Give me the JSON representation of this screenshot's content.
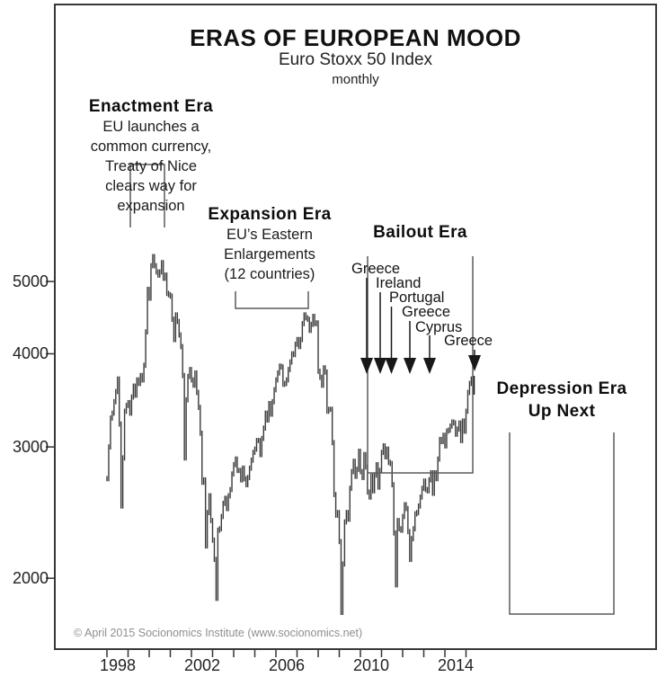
{
  "header": {
    "title": "ERAS OF EUROPEAN MOOD",
    "subtitle": "Euro Stoxx 50 Index",
    "frequency": "monthly"
  },
  "eras": {
    "enactment": {
      "title": "Enactment Era",
      "desc_lines": [
        "EU launches a",
        "common currency,",
        "Treaty of Nice",
        "clears way for",
        "expansion"
      ]
    },
    "expansion": {
      "title": "Expansion Era",
      "desc_lines": [
        "EU’s Eastern",
        "Enlargements",
        "(12 countries)"
      ]
    },
    "bailout": {
      "title": "Bailout Era",
      "events": [
        "Greece",
        "Ireland",
        "Portugal",
        "Greece",
        "Cyprus",
        "Greece"
      ]
    },
    "depression": {
      "title": "Depression Era",
      "subtitle": "Up Next"
    }
  },
  "axes": {
    "y_tick_labels": [
      "5000",
      "4000",
      "3000",
      "2000"
    ],
    "x_labels": [
      "1998",
      "2002",
      "2006",
      "2010",
      "2014"
    ]
  },
  "footer": {
    "copyright": "© April 2015 Socionomics Institute (www.socionomics.net)"
  },
  "colors": {
    "price_bar": "#3a3a3a",
    "frame": "#383838",
    "tick": "#333333",
    "bracket": "#5a5a5a",
    "arrow": "#181818",
    "text": "#1b1b1b",
    "muted": "#8f8f8f"
  },
  "chart_data": {
    "type": "line",
    "style": "monthly high-low price bars",
    "title": "ERAS OF EUROPEAN MOOD",
    "subtitle": "Euro Stoxx 50 Index",
    "frequency": "monthly",
    "y_scale": "log",
    "ylim": [
      1700,
      5600
    ],
    "y_ticks": [
      5000,
      4000,
      3000,
      2000
    ],
    "x_start": "1998-01",
    "x_end": "2015-04",
    "x_tick_years": [
      1998,
      1999,
      2000,
      2001,
      2002,
      2003,
      2004,
      2005,
      2006,
      2007,
      2008,
      2009,
      2010,
      2011,
      2012,
      2013,
      2014,
      2015
    ],
    "x_label_years": [
      1998,
      2002,
      2006,
      2010,
      2014
    ],
    "monthly_close": [
      2720,
      3000,
      3280,
      3330,
      3450,
      3560,
      3700,
      3220,
      2500,
      2900,
      3350,
      3410,
      3440,
      3330,
      3500,
      3620,
      3520,
      3690,
      3650,
      3740,
      3690,
      3860,
      4280,
      4880,
      4750,
      5250,
      5400,
      5250,
      5150,
      5100,
      5150,
      5300,
      5050,
      5100,
      4820,
      4800,
      4780,
      4450,
      4180,
      4510,
      4420,
      4240,
      4090,
      3740,
      2900,
      3470,
      3730,
      3810,
      3690,
      3630,
      3770,
      3550,
      3390,
      3130,
      2690,
      2710,
      2210,
      2450,
      2580,
      2390,
      2250,
      2120,
      1880,
      2320,
      2330,
      2420,
      2520,
      2560,
      2480,
      2580,
      2630,
      2760,
      2840,
      2890,
      2790,
      2790,
      2710,
      2810,
      2720,
      2670,
      2730,
      2810,
      2880,
      2950,
      2980,
      3060,
      3060,
      2930,
      3080,
      3180,
      3330,
      3260,
      3430,
      3320,
      3450,
      3580,
      3690,
      3770,
      3850,
      3840,
      3640,
      3650,
      3690,
      3810,
      3900,
      4000,
      3990,
      4120,
      4180,
      4090,
      4180,
      4390,
      4510,
      4470,
      4450,
      4300,
      4380,
      4490,
      4390,
      4400,
      3790,
      3720,
      3630,
      3830,
      3780,
      3350,
      3370,
      3370,
      3040,
      2590,
      2430,
      2450,
      2240,
      1800,
      2090,
      2380,
      2450,
      2400,
      2640,
      2780,
      2870,
      2740,
      2800,
      2960,
      2780,
      2730,
      2930,
      2820,
      2610,
      2570,
      2740,
      2620,
      2750,
      2840,
      2650,
      2790,
      2950,
      3010,
      2910,
      2980,
      2860,
      2850,
      2670,
      2300,
      1960,
      2390,
      2330,
      2320,
      2420,
      2510,
      2480,
      2310,
      2120,
      2260,
      2330,
      2440,
      2450,
      2500,
      2570,
      2640,
      2700,
      2630,
      2620,
      2710,
      2770,
      2600,
      2770,
      2720,
      2890,
      3070,
      3050,
      3110,
      3010,
      3150,
      3160,
      3200,
      3240,
      3230,
      3120,
      3170,
      3230,
      3060,
      3250,
      3150,
      3350,
      3550,
      3650,
      3700
    ]
  }
}
